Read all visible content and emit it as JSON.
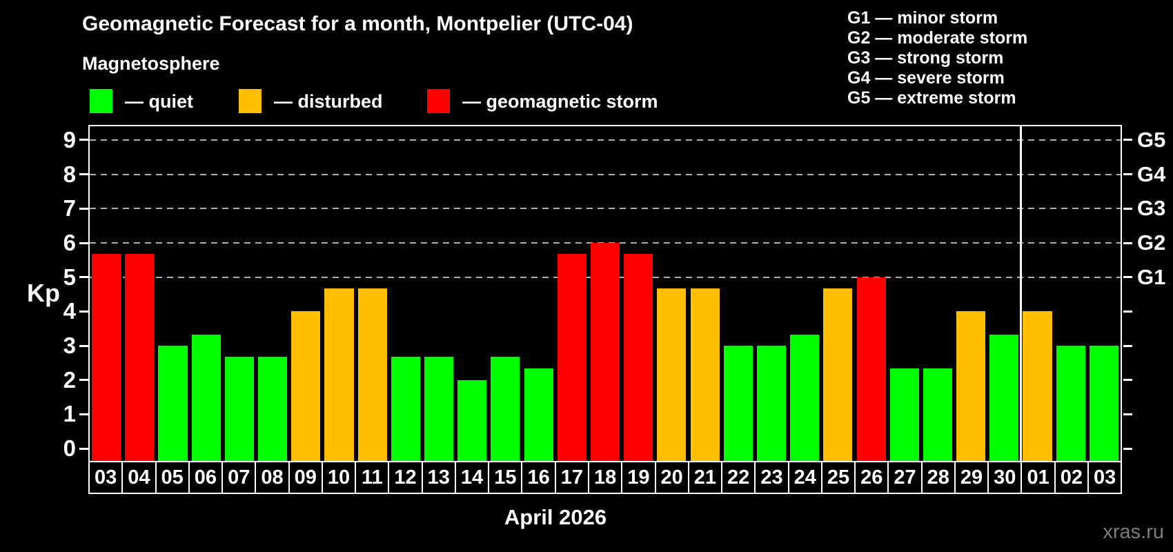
{
  "watermark": "xras.ru",
  "chart_data": {
    "type": "bar",
    "title": "Geomagnetic Forecast for a month, Montpelier (UTC-04)",
    "subtitle": "Magnetosphere",
    "xlabel": "April 2026",
    "ylabel": "Kp",
    "ylim": [
      0,
      9
    ],
    "yticks": [
      0,
      1,
      2,
      3,
      4,
      5,
      6,
      7,
      8,
      9
    ],
    "grid_levels": [
      5,
      6,
      7,
      8,
      9
    ],
    "grid_style": "dashed horizontal lines at storm levels only",
    "legend_position": "top-left",
    "legend": [
      {
        "state": "quiet",
        "label": "— quiet",
        "color": "#00ff00"
      },
      {
        "state": "disturbed",
        "label": "— disturbed",
        "color": "#ffbe00"
      },
      {
        "state": "storm",
        "label": "— geomagnetic storm",
        "color": "#ff0000"
      }
    ],
    "storm_scale": [
      "G1 — minor storm",
      "G2 — moderate storm",
      "G3 — strong storm",
      "G4 — severe storm",
      "G5 — extreme storm"
    ],
    "right_axis": [
      {
        "value": 5,
        "label": "G1"
      },
      {
        "value": 6,
        "label": "G2"
      },
      {
        "value": 7,
        "label": "G3"
      },
      {
        "value": 8,
        "label": "G4"
      },
      {
        "value": 9,
        "label": "G5"
      }
    ],
    "categories": [
      "03",
      "04",
      "05",
      "06",
      "07",
      "08",
      "09",
      "10",
      "11",
      "12",
      "13",
      "14",
      "15",
      "16",
      "17",
      "18",
      "19",
      "20",
      "21",
      "22",
      "23",
      "24",
      "25",
      "26",
      "27",
      "28",
      "29",
      "30",
      "01",
      "02",
      "03"
    ],
    "values": [
      5.67,
      5.67,
      3.0,
      3.33,
      2.67,
      2.67,
      4.0,
      4.67,
      4.67,
      2.67,
      2.67,
      2.0,
      2.67,
      2.33,
      5.67,
      6.0,
      5.67,
      4.67,
      4.67,
      3.0,
      3.0,
      3.33,
      4.67,
      5.0,
      2.33,
      2.33,
      4.0,
      3.33,
      4.0,
      3.0,
      3.0
    ],
    "states": [
      "storm",
      "storm",
      "quiet",
      "quiet",
      "quiet",
      "quiet",
      "disturbed",
      "disturbed",
      "disturbed",
      "quiet",
      "quiet",
      "quiet",
      "quiet",
      "quiet",
      "storm",
      "storm",
      "storm",
      "disturbed",
      "disturbed",
      "quiet",
      "quiet",
      "quiet",
      "disturbed",
      "storm",
      "quiet",
      "quiet",
      "disturbed",
      "quiet",
      "disturbed",
      "quiet",
      "quiet"
    ],
    "state_colors": {
      "quiet": "#00ff00",
      "disturbed": "#ffbe00",
      "storm": "#ff0000"
    },
    "month_separator_after_index": 27
  }
}
